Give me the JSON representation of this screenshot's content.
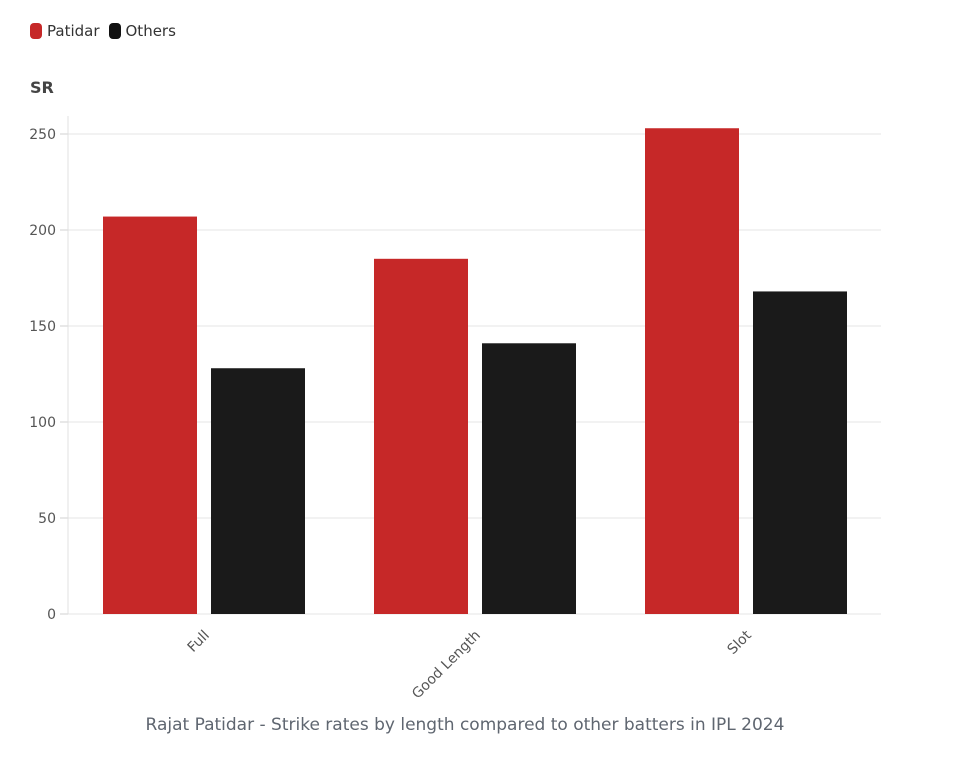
{
  "chart_data": {
    "type": "bar",
    "title": "Rajat Patidar - Strike rates by length compared to other batters in IPL 2024",
    "ylabel": "SR",
    "xlabel": "",
    "categories": [
      "Full",
      "Good Length",
      "Slot"
    ],
    "series": [
      {
        "name": "Patidar",
        "color": "#c62828",
        "values": [
          207,
          185,
          253
        ]
      },
      {
        "name": "Others",
        "color": "#1a1a1a",
        "values": [
          128,
          141,
          168
        ]
      }
    ],
    "ylim": [
      0,
      260
    ],
    "yticks": [
      0,
      50,
      100,
      150,
      200,
      250
    ],
    "grid": true,
    "legend": "top-left"
  }
}
